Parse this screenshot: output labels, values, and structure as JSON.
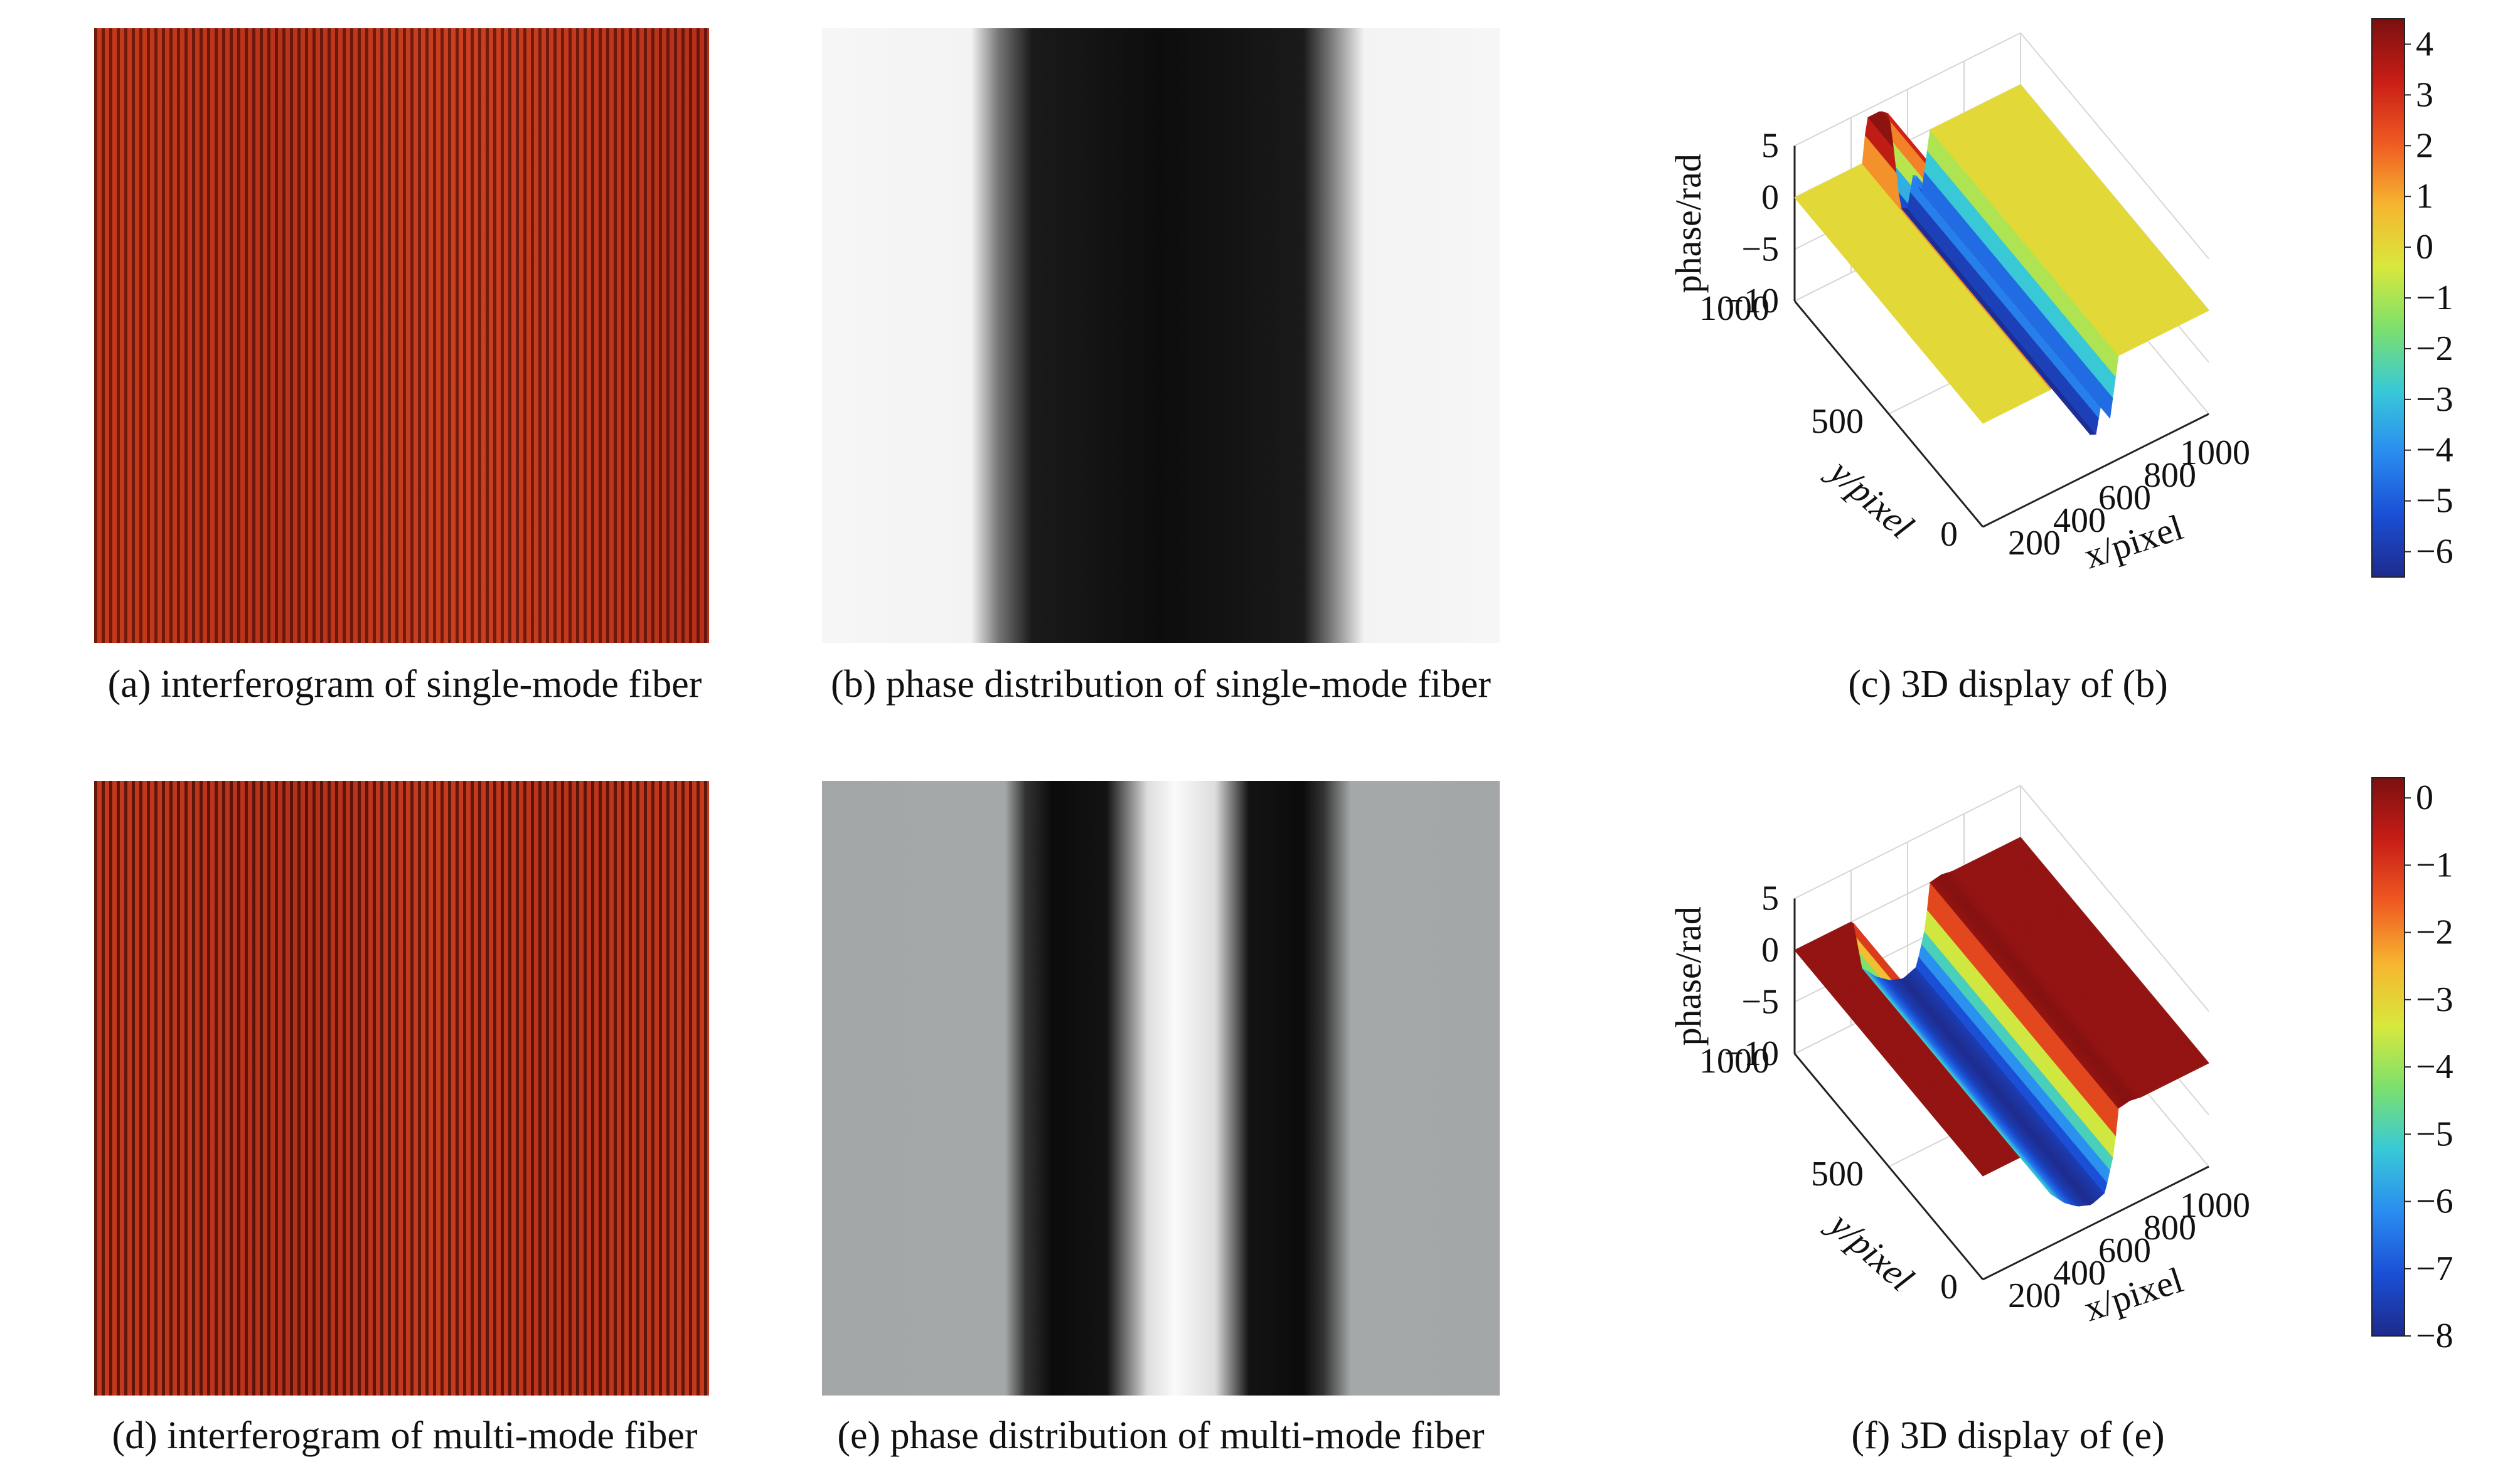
{
  "captions": {
    "a": "(a) interferogram of single-mode fiber",
    "b": "(b) phase distribution of single-mode fiber",
    "c": "(c) 3D display of (b)",
    "d": "(d) interferogram of multi-mode fiber",
    "e": "(e) phase distribution of multi-mode fiber",
    "f": "(f) 3D display of (e)"
  },
  "colormap": [
    "#1e2a8c",
    "#1a4fd6",
    "#2a8cf0",
    "#38c9d8",
    "#7be06c",
    "#d8e83c",
    "#f6b530",
    "#ef5a22",
    "#c81d16",
    "#7a1010"
  ],
  "chart_data": [
    {
      "type": "surface",
      "panel": "c",
      "zlabel": "phase/rad",
      "xlabel": "x/pixel",
      "ylabel": "y/pixel",
      "x_ticks": [
        "200",
        "400",
        "600",
        "800",
        "1000"
      ],
      "y_ticks": [
        "0",
        "500",
        "1000"
      ],
      "z_ticks": [
        "5",
        "0",
        "−5",
        "−10"
      ],
      "xlim": [
        0,
        1000
      ],
      "ylim": [
        0,
        1000
      ],
      "zlim": [
        -10,
        5
      ],
      "profile_x": [
        0,
        250,
        300,
        320,
        380,
        420,
        440,
        470,
        500,
        530,
        560,
        600,
        680,
        1000
      ],
      "profile_z": [
        0,
        0,
        0,
        4.2,
        4.2,
        3.5,
        0,
        -6.2,
        -6.5,
        -3,
        -6,
        0,
        0,
        0
      ],
      "colorbar": {
        "min": -6.5,
        "max": 4.5,
        "ticks": [
          "4",
          "3",
          "2",
          "1",
          "0",
          "−1",
          "−2",
          "−3",
          "−4",
          "−5",
          "−6"
        ]
      }
    },
    {
      "type": "surface",
      "panel": "f",
      "zlabel": "phase/rad",
      "xlabel": "x/pixel",
      "ylabel": "y/pixel",
      "x_ticks": [
        "200",
        "400",
        "600",
        "800",
        "1000"
      ],
      "y_ticks": [
        "0",
        "500",
        "1000"
      ],
      "z_ticks": [
        "5",
        "0",
        "−5",
        "−10"
      ],
      "xlim": [
        0,
        1000
      ],
      "ylim": [
        0,
        1000
      ],
      "zlim": [
        -10,
        5
      ],
      "profile_x": [
        0,
        260,
        300,
        360,
        420,
        480,
        540,
        580,
        600,
        650,
        700,
        1000
      ],
      "profile_z": [
        0,
        0,
        -5,
        -6.5,
        -7.5,
        -8,
        -7.5,
        -4,
        0,
        0.2,
        0,
        0
      ],
      "colorbar": {
        "min": -8,
        "max": 0.3,
        "ticks": [
          "0",
          "−1",
          "−2",
          "−3",
          "−4",
          "−5",
          "−6",
          "−7",
          "−8"
        ]
      }
    }
  ]
}
